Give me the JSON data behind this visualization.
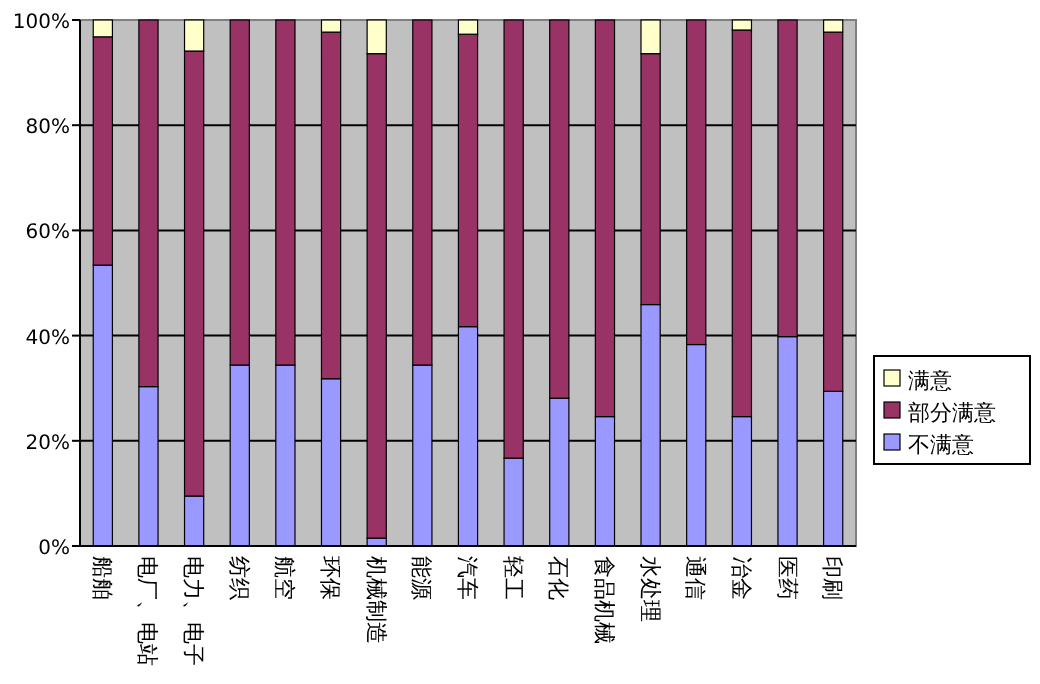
{
  "chart_data": {
    "type": "bar",
    "stacked": true,
    "grid": "y",
    "legend": "right",
    "categories": [
      "船舶",
      "电厂、电站",
      "电力、电子",
      "纺织",
      "航空",
      "环保",
      "机械制造",
      "能源",
      "汽车",
      "轻工",
      "石化",
      "食品机械",
      "水处理",
      "通信",
      "冶金",
      "医药",
      "印刷"
    ],
    "series": [
      {
        "name": "不满意",
        "color": "#9999ff",
        "values": [
          53.4,
          30.3,
          9.5,
          34.4,
          34.4,
          31.8,
          1.5,
          34.4,
          41.7,
          16.7,
          28.1,
          24.6,
          45.9,
          38.3,
          24.6,
          39.8,
          29.4
        ]
      },
      {
        "name": "部分满意",
        "color": "#993366",
        "values": [
          43.4,
          69.7,
          84.6,
          65.6,
          65.6,
          65.9,
          92.1,
          65.6,
          55.6,
          83.3,
          71.9,
          75.4,
          47.7,
          61.7,
          73.5,
          60.2,
          68.3
        ]
      },
      {
        "name": "满意",
        "color": "#ffffcc",
        "values": [
          3.2,
          0,
          5.9,
          0,
          0,
          2.3,
          6.4,
          0,
          2.7,
          0,
          0,
          0,
          6.4,
          0,
          1.9,
          0,
          2.3
        ]
      }
    ],
    "ylim": [
      0,
      100
    ],
    "yticks": [
      {
        "value": 0,
        "label": "0%"
      },
      {
        "value": 20,
        "label": "20%"
      },
      {
        "value": 40,
        "label": "40%"
      },
      {
        "value": 60,
        "label": "60%"
      },
      {
        "value": 80,
        "label": "80%"
      },
      {
        "value": 100,
        "label": "100%"
      }
    ]
  }
}
